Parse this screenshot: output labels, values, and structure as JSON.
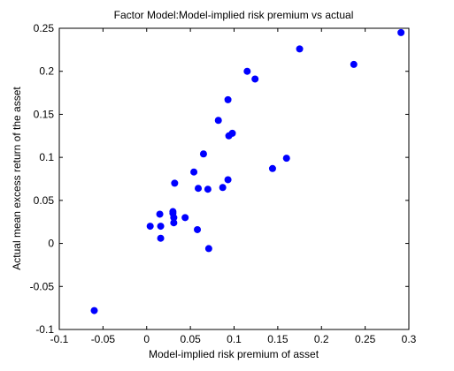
{
  "chart_data": {
    "type": "scatter",
    "title": "Factor Model:Model-implied risk premium vs actual",
    "xlabel": "Model-implied risk premium of asset",
    "ylabel": "Actual mean excess return of the asset",
    "xlim": [
      -0.1,
      0.3
    ],
    "ylim": [
      -0.1,
      0.25
    ],
    "xticks": [
      "-0.1",
      "-0.05",
      "0",
      "0.05",
      "0.1",
      "0.15",
      "0.2",
      "0.25",
      "0.3"
    ],
    "yticks": [
      "-0.1",
      "-0.05",
      "0",
      "0.05",
      "0.1",
      "0.15",
      "0.2",
      "0.25"
    ],
    "grid": false,
    "legend": "none",
    "marker_color": "#0000ff",
    "points": [
      {
        "x": -0.06,
        "y": -0.078
      },
      {
        "x": 0.004,
        "y": 0.02
      },
      {
        "x": 0.015,
        "y": 0.034
      },
      {
        "x": 0.016,
        "y": 0.02
      },
      {
        "x": 0.016,
        "y": 0.006
      },
      {
        "x": 0.03,
        "y": 0.037
      },
      {
        "x": 0.03,
        "y": 0.035
      },
      {
        "x": 0.031,
        "y": 0.03
      },
      {
        "x": 0.031,
        "y": 0.024
      },
      {
        "x": 0.032,
        "y": 0.07
      },
      {
        "x": 0.044,
        "y": 0.03
      },
      {
        "x": 0.054,
        "y": 0.083
      },
      {
        "x": 0.058,
        "y": 0.016
      },
      {
        "x": 0.059,
        "y": 0.064
      },
      {
        "x": 0.065,
        "y": 0.104
      },
      {
        "x": 0.07,
        "y": 0.063
      },
      {
        "x": 0.071,
        "y": -0.006
      },
      {
        "x": 0.082,
        "y": 0.143
      },
      {
        "x": 0.087,
        "y": 0.065
      },
      {
        "x": 0.093,
        "y": 0.074
      },
      {
        "x": 0.093,
        "y": 0.167
      },
      {
        "x": 0.094,
        "y": 0.125
      },
      {
        "x": 0.098,
        "y": 0.128
      },
      {
        "x": 0.115,
        "y": 0.2
      },
      {
        "x": 0.124,
        "y": 0.191
      },
      {
        "x": 0.144,
        "y": 0.087
      },
      {
        "x": 0.16,
        "y": 0.099
      },
      {
        "x": 0.175,
        "y": 0.226
      },
      {
        "x": 0.237,
        "y": 0.208
      },
      {
        "x": 0.291,
        "y": 0.245
      }
    ]
  }
}
